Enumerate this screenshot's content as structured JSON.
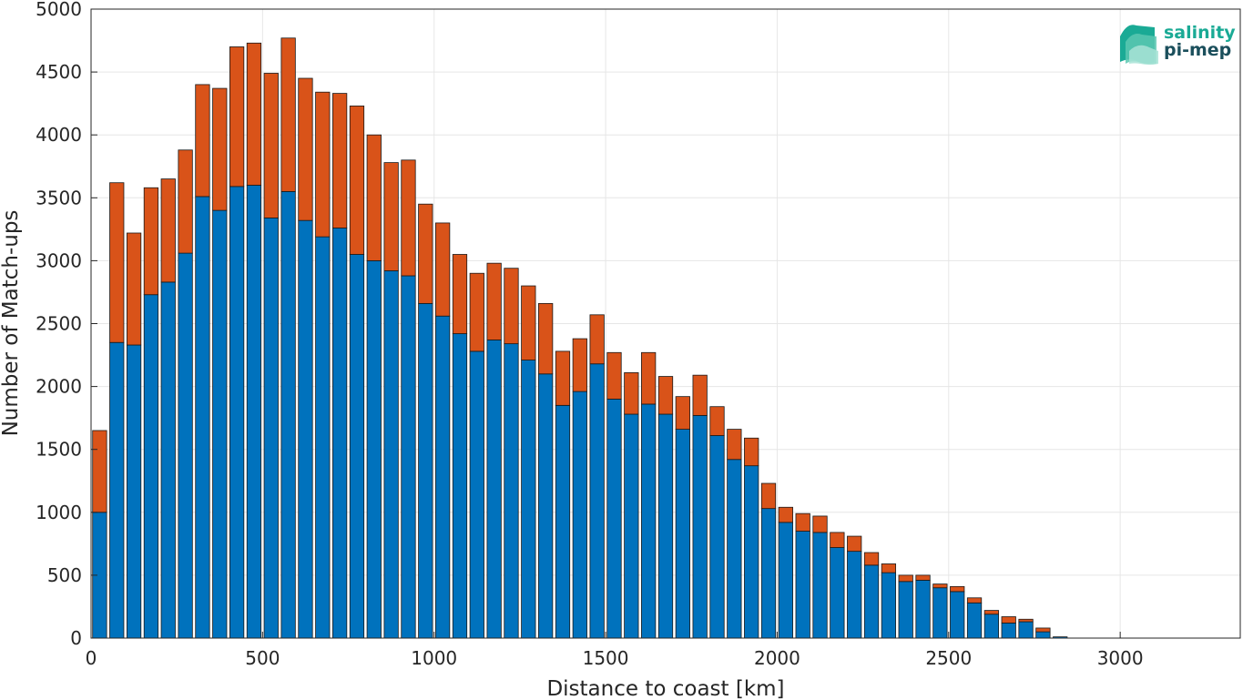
{
  "chart_data": {
    "type": "bar",
    "stacked": true,
    "xlabel": "Distance to coast [km]",
    "ylabel": "Number of Match-ups",
    "xlim": [
      0,
      3350
    ],
    "ylim": [
      0,
      5000
    ],
    "xticks": [
      0,
      500,
      1000,
      1500,
      2000,
      2500,
      3000
    ],
    "yticks": [
      0,
      500,
      1000,
      1500,
      2000,
      2500,
      3000,
      3500,
      4000,
      4500,
      5000
    ],
    "grid": true,
    "bin_width": 50,
    "x": [
      25,
      75,
      125,
      175,
      225,
      275,
      325,
      375,
      425,
      475,
      525,
      575,
      625,
      675,
      725,
      775,
      825,
      875,
      925,
      975,
      1025,
      1075,
      1125,
      1175,
      1225,
      1275,
      1325,
      1375,
      1425,
      1475,
      1525,
      1575,
      1625,
      1675,
      1725,
      1775,
      1825,
      1875,
      1925,
      1975,
      2025,
      2075,
      2125,
      2175,
      2225,
      2275,
      2325,
      2375,
      2425,
      2475,
      2525,
      2575,
      2625,
      2675,
      2725,
      2775,
      2825
    ],
    "series": [
      {
        "color": "#0072BD",
        "values": [
          1000,
          2350,
          2330,
          2730,
          2830,
          3060,
          3510,
          3400,
          3590,
          3600,
          3340,
          3550,
          3320,
          3190,
          3260,
          3050,
          3000,
          2920,
          2880,
          2660,
          2560,
          2420,
          2280,
          2370,
          2340,
          2210,
          2100,
          1850,
          1960,
          2180,
          1900,
          1780,
          1860,
          1780,
          1660,
          1770,
          1610,
          1420,
          1370,
          1030,
          920,
          850,
          840,
          720,
          690,
          580,
          520,
          450,
          460,
          400,
          370,
          280,
          190,
          120,
          130,
          50,
          10
        ]
      },
      {
        "color": "#D95319",
        "values": [
          650,
          1270,
          890,
          850,
          820,
          820,
          890,
          970,
          1110,
          1130,
          1150,
          1220,
          1130,
          1150,
          1070,
          1180,
          1000,
          860,
          920,
          790,
          740,
          630,
          620,
          610,
          600,
          590,
          560,
          430,
          420,
          390,
          370,
          330,
          410,
          300,
          260,
          320,
          230,
          240,
          220,
          200,
          120,
          140,
          130,
          120,
          120,
          100,
          70,
          50,
          40,
          30,
          40,
          40,
          30,
          50,
          20,
          30,
          0
        ]
      }
    ]
  },
  "logo": {
    "line1": "salinity",
    "line2": "pi-mep",
    "color1": "#1aaa95",
    "color2": "#1b4f5c"
  }
}
